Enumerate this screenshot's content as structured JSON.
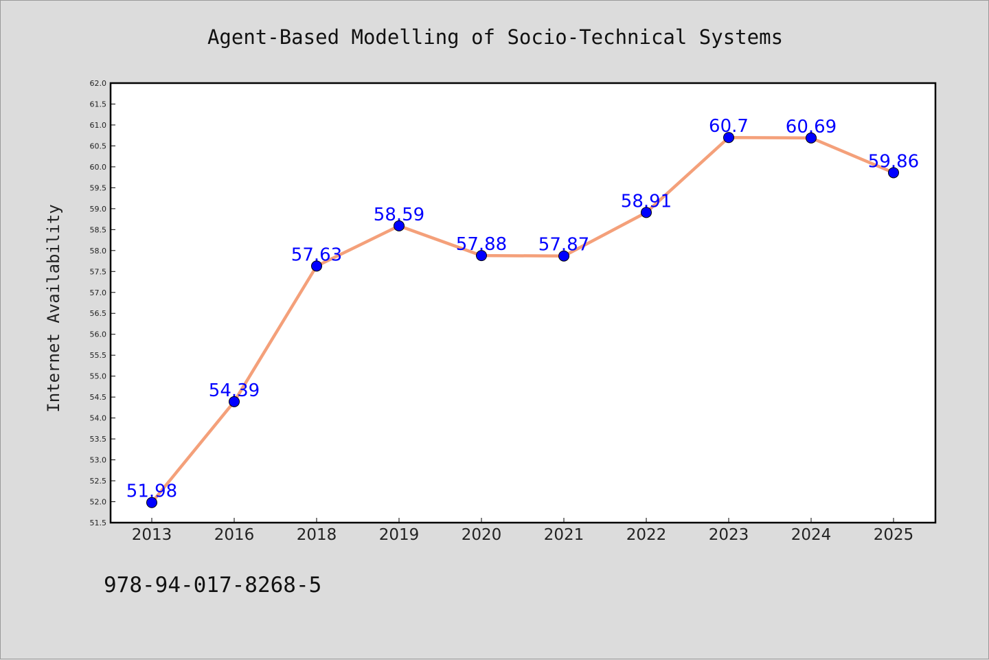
{
  "chart_data": {
    "type": "line",
    "title": "Agent-Based Modelling of Socio-Technical Systems",
    "xlabel": "",
    "ylabel": "Internet Availability",
    "categories": [
      "2013",
      "2016",
      "2018",
      "2019",
      "2020",
      "2021",
      "2022",
      "2023",
      "2024",
      "2025"
    ],
    "series": [
      {
        "values": [
          51.98,
          54.39,
          57.63,
          58.59,
          57.88,
          57.87,
          58.91,
          60.7,
          60.69,
          59.86
        ],
        "labels": [
          "51.98",
          "54.39",
          "57.63",
          "58.59",
          "57.88",
          "57.87",
          "58.91",
          "60.7",
          "60.69",
          "59.86"
        ]
      }
    ],
    "ylim": [
      51.5,
      62.0
    ],
    "ytick_step": 0.5,
    "grid": false,
    "legend": "none",
    "line_color": "#f4a07a",
    "marker_color": "#0000ff",
    "label_color": "#0000ff"
  },
  "footer": {
    "isbn": "978-94-017-8268-5"
  }
}
